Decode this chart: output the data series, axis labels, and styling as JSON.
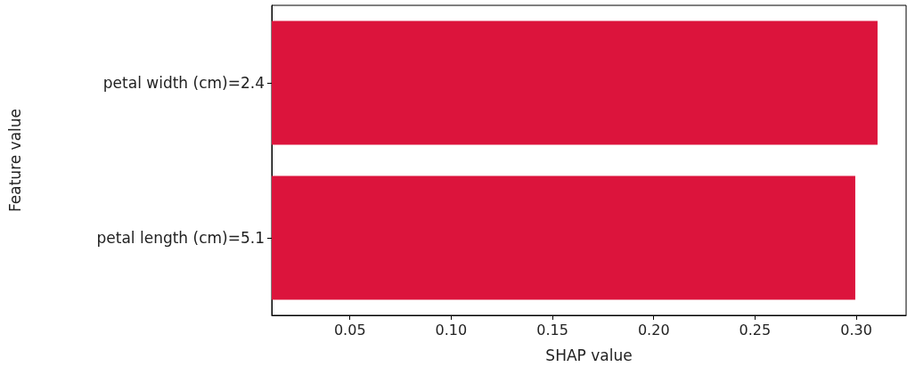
{
  "chart_data": {
    "type": "bar",
    "orientation": "horizontal",
    "xlabel": "SHAP value",
    "ylabel": "Feature value",
    "categories": [
      "petal width (cm)=2.4",
      "petal length (cm)=5.1"
    ],
    "values": [
      0.3105,
      0.2995
    ],
    "color": "#dc143c",
    "xlim": [
      0.0114,
      0.3246
    ],
    "xticks": [
      0.05,
      {
        "value": 0.1,
        "label": "0.10"
      },
      0.15,
      {
        "value": 0.2,
        "label": "0.20"
      },
      0.25,
      {
        "value": 0.3,
        "label": "0.30"
      }
    ]
  }
}
